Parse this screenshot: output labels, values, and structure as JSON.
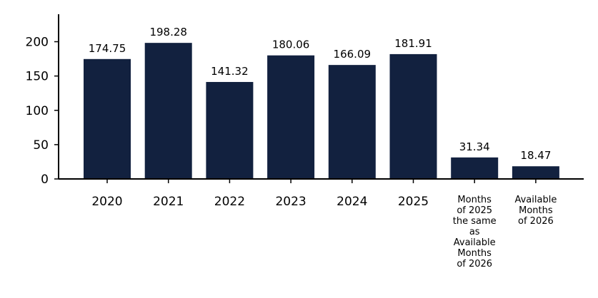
{
  "chart_data": {
    "type": "bar",
    "categories": [
      "2020",
      "2021",
      "2022",
      "2023",
      "2024",
      "2025",
      "Months of 2025 the same as Available Months of 2026",
      "Available Months of 2026"
    ],
    "category_lines": [
      [
        "2020"
      ],
      [
        "2021"
      ],
      [
        "2022"
      ],
      [
        "2023"
      ],
      [
        "2024"
      ],
      [
        "2025"
      ],
      [
        "Months",
        "of 2025",
        "the same",
        "as",
        "Available",
        "Months",
        "of 2026"
      ],
      [
        "Available",
        "Months",
        "of 2026"
      ]
    ],
    "values": [
      174.75,
      198.28,
      141.32,
      180.06,
      166.09,
      181.91,
      31.34,
      18.47
    ],
    "value_labels": [
      "174.75",
      "198.28",
      "141.32",
      "180.06",
      "166.09",
      "181.91",
      "31.34",
      "18.47"
    ],
    "y_ticks": [
      0,
      50,
      100,
      150,
      200
    ],
    "ylim": [
      0,
      240
    ],
    "grid": false,
    "bar_color": "#12213f",
    "title": "",
    "xlabel": "",
    "ylabel": ""
  }
}
